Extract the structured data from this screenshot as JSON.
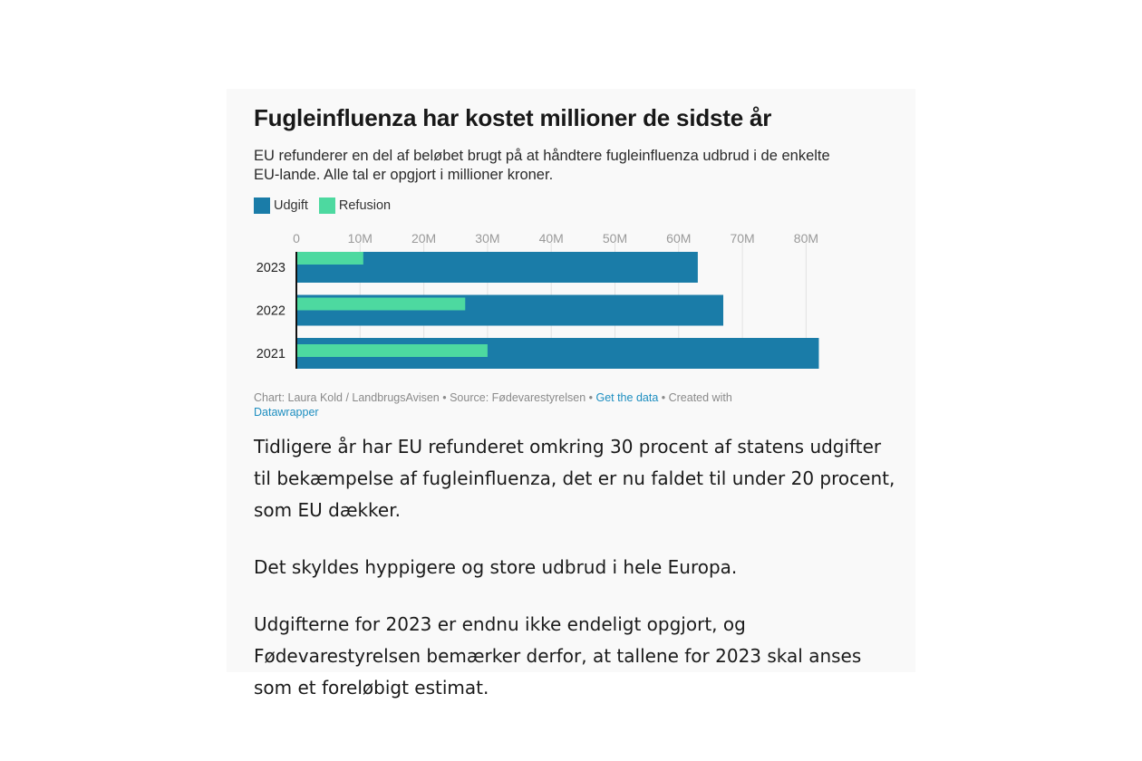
{
  "article": {
    "title": "Fugleinfluenza har kostet millioner de sidste år",
    "subtitle": "EU refunderer en del af beløbet brugt på at håndtere fugleinfluenza udbrud i de enkelte EU-lande. Alle tal er opgjort i millioner kroner.",
    "footer": {
      "credit": "Chart: Laura Kold / LandbrugsAvisen • Source: Fødevarestyrelsen • ",
      "get_data": "Get the data",
      "created_with": " • Created with ",
      "datawrapper": "Datawrapper"
    },
    "paragraphs": [
      "Tidligere år har EU refunderet omkring 30 procent af statens udgifter til bekæmpelse af fugleinfluenza, det er nu faldet til under 20 procent, som EU dækker.",
      "Det skyldes hyppigere og store udbrud i hele Europa.",
      "Udgifterne for 2023 er endnu ikke endeligt opgjort, og Fødevarestyrelsen bemærker derfor, at tallene for 2023 skal anses som et foreløbigt estimat."
    ]
  },
  "chart_data": {
    "type": "bar",
    "orientation": "horizontal",
    "categories": [
      "2023",
      "2022",
      "2021"
    ],
    "series": [
      {
        "name": "Udgift",
        "color": "#1a7ca8",
        "values": [
          63,
          67,
          82
        ]
      },
      {
        "name": "Refusion",
        "color": "#4dd9a0",
        "values": [
          10.5,
          26.5,
          30
        ]
      }
    ],
    "xlim": [
      0,
      80
    ],
    "xticks": [
      0,
      10,
      20,
      30,
      40,
      50,
      60,
      70,
      80
    ],
    "xtick_labels": [
      "0",
      "10M",
      "20M",
      "30M",
      "40M",
      "50M",
      "60M",
      "70M",
      "80M"
    ],
    "grid": true,
    "legend_position": "top-left"
  }
}
